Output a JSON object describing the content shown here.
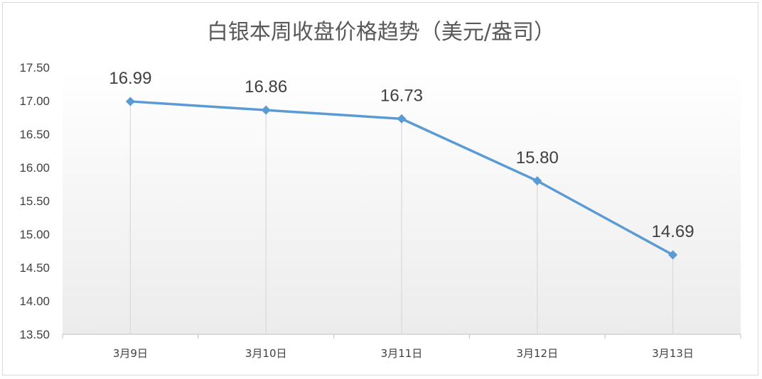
{
  "chart_data": {
    "type": "line",
    "title": "白银本周收盘价格趋势（美元/盎司）",
    "categories": [
      "3月9日",
      "3月10日",
      "3月11日",
      "3月12日",
      "3月13日"
    ],
    "series": [
      {
        "values": [
          16.99,
          16.86,
          16.73,
          15.8,
          14.69
        ]
      }
    ],
    "data_labels": [
      "16.99",
      "16.86",
      "16.73",
      "15.80",
      "14.69"
    ],
    "ylim": [
      13.5,
      17.5
    ],
    "y_ticks": [
      "13.50",
      "14.00",
      "14.50",
      "15.00",
      "15.50",
      "16.00",
      "16.50",
      "17.00",
      "17.50"
    ],
    "grid": false,
    "drop_lines": true,
    "legend": "none",
    "colors": {
      "line": "#5b9bd5",
      "drop_line": "#d9d9d9",
      "axis": "#bfbfbf",
      "text": "#404040",
      "title": "#595959"
    }
  }
}
